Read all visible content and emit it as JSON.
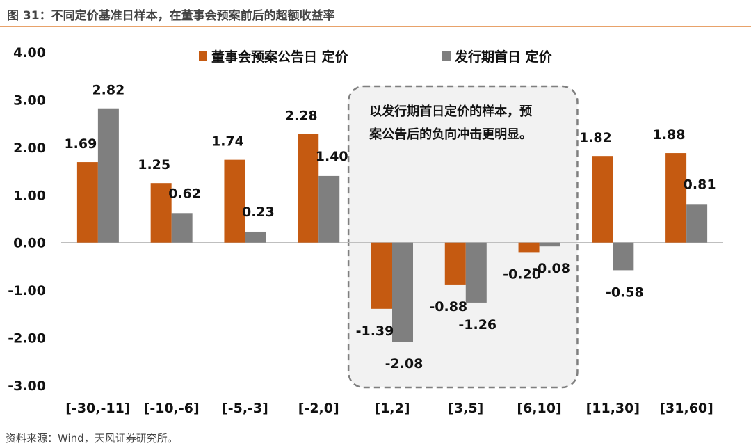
{
  "header": {
    "title": "图 31：不同定价基准日样本，在董事会预案前后的超额收益率"
  },
  "footer": {
    "source": "资料来源：Wind，天风证券研究所。"
  },
  "chart_data": {
    "type": "bar",
    "title": "",
    "xlabel": "",
    "ylabel": "",
    "ylim": [
      -3,
      4
    ],
    "yticks": [
      "4.00",
      "3.00",
      "2.00",
      "1.00",
      "0.00",
      "-1.00",
      "-2.00",
      "-3.00"
    ],
    "ytick_values": [
      4,
      3,
      2,
      1,
      0,
      -1,
      -2,
      -3
    ],
    "grid": false,
    "legend_position": "top",
    "categories": [
      "[-30,-11]",
      "[-10,-6]",
      "[-5,-3]",
      "[-2,0]",
      "[1,2]",
      "[3,5]",
      "[6,10]",
      "[11,30]",
      "[31,60]"
    ],
    "series": [
      {
        "name": "董事会预案公告日 定价",
        "color": "#c55a11",
        "values": [
          1.69,
          1.25,
          1.74,
          2.28,
          -1.39,
          -0.88,
          -0.2,
          1.82,
          1.88
        ],
        "labels": [
          "1.69",
          "1.25",
          "1.74",
          "2.28",
          "-1.39",
          "-0.88",
          "-0.20",
          "1.82",
          "1.88"
        ]
      },
      {
        "name": "发行期首日 定价",
        "color": "#7f7f7f",
        "values": [
          2.82,
          0.62,
          0.23,
          1.4,
          -2.08,
          -1.26,
          -0.08,
          -0.58,
          0.81
        ],
        "labels": [
          "2.82",
          "0.62",
          "0.23",
          "1.40",
          "-2.08",
          "-1.26",
          "-0.08",
          "-0.58",
          "0.81"
        ]
      }
    ],
    "annotation": {
      "lines": [
        "以发行期首日定价的样本，预",
        "案公告后的负向冲击更明显。"
      ],
      "highlight_categories": [
        "[1,2]",
        "[3,5]",
        "[6,10]"
      ]
    }
  }
}
